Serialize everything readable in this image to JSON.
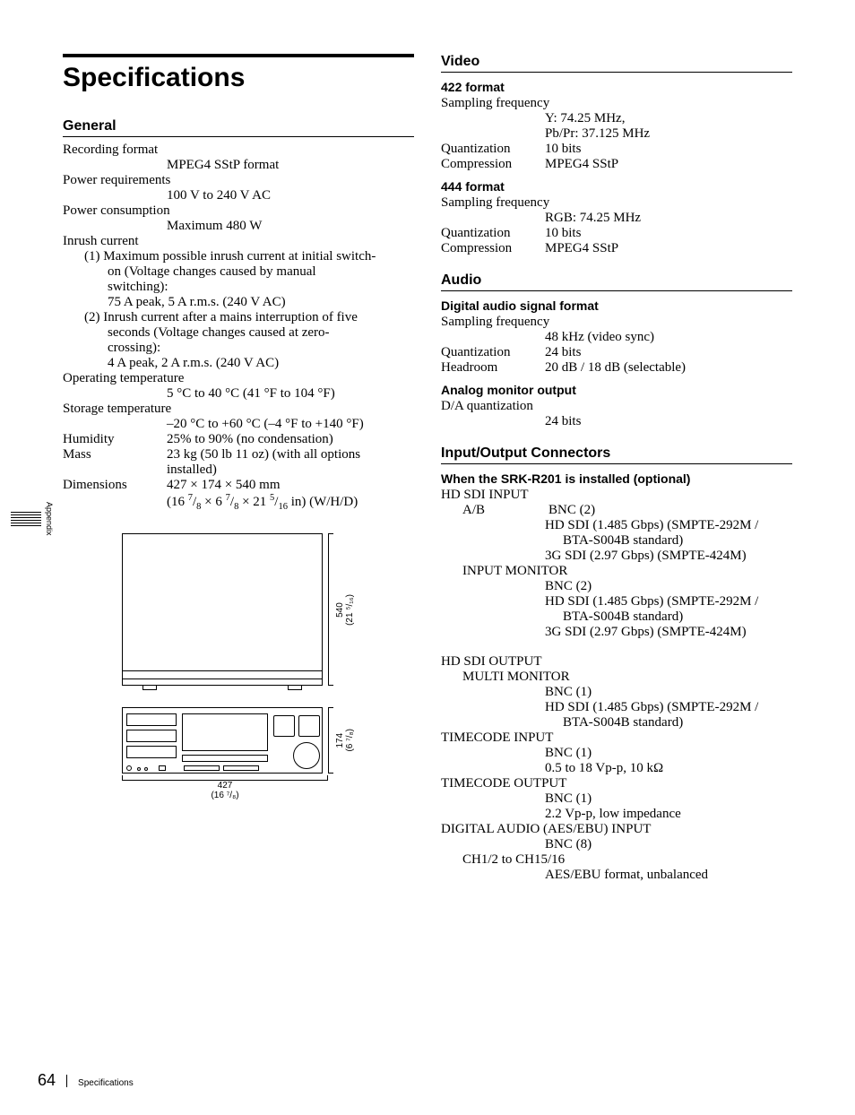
{
  "sideTab": "Appendix",
  "title": "Specifications",
  "footer": {
    "pageNum": "64",
    "label": "Specifications"
  },
  "left": {
    "general": {
      "heading": "General",
      "items": [
        {
          "label": "Recording format",
          "valueLines": [
            "MPEG4 SStP format"
          ],
          "labelFull": true
        },
        {
          "label": "Power requirements",
          "valueLines": [
            "100 V to 240 V AC"
          ],
          "labelFull": true
        },
        {
          "label": "Power consumption",
          "valueLines": [
            "Maximum 480 W"
          ],
          "labelFull": true
        },
        {
          "label": "Inrush current",
          "labelFull": true,
          "subnumbered": [
            {
              "num": "(1)",
              "first": "Maximum possible inrush current at initial switch-",
              "rest": [
                "on (Voltage changes caused by manual",
                "switching):",
                "75 A peak, 5 A r.m.s. (240 V AC)"
              ]
            },
            {
              "num": "(2)",
              "first": "Inrush current after a mains interruption of five",
              "rest": [
                "seconds (Voltage changes caused at zero-",
                "crossing):",
                "4 A peak, 2 A r.m.s. (240 V AC)"
              ]
            }
          ]
        },
        {
          "label": "Operating temperature",
          "valueLines": [
            "5 °C to 40 °C (41 °F to 104 °F)"
          ],
          "labelFull": true
        },
        {
          "label": "Storage temperature",
          "valueLines": [
            "–20 °C to +60 °C (–4 °F to +140 °F)"
          ],
          "labelFull": true
        },
        {
          "label": "Humidity",
          "value": "25% to 90% (no condensation)"
        },
        {
          "label": "Mass",
          "valueLines2": [
            "23 kg (50 lb 11 oz) (with all options",
            "installed)"
          ]
        },
        {
          "label": "Dimensions",
          "valueLines2raw": [
            "427 × 174 × 540 mm",
            "(16 <sup>7</sup>/<sub>8</sub> × 6 <sup>7</sup>/<sub>8</sub> × 21 <sup>5</sup>/<sub>16</sub> in) (W/H/D)"
          ]
        }
      ]
    },
    "figure": {
      "depth": "540",
      "depthIn": "(21 ⁵/₁₆)",
      "height": "174",
      "heightIn": "(6 ⁷/₈)",
      "width": "427",
      "widthIn": "(16 ⁷/₈)"
    }
  },
  "right": {
    "video": {
      "heading": "Video",
      "groups": [
        {
          "sub": "422 format",
          "rows": [
            {
              "label": "Sampling frequency",
              "labelFull": true,
              "valueLines": [
                "Y: 74.25 MHz,",
                "Pb/Pr: 37.125 MHz"
              ]
            },
            {
              "label": "Quantization",
              "value": "10 bits"
            },
            {
              "label": "Compression",
              "value": "MPEG4 SStP"
            }
          ]
        },
        {
          "sub": "444 format",
          "rows": [
            {
              "label": "Sampling frequency",
              "labelFull": true,
              "valueLines": [
                "RGB: 74.25 MHz"
              ]
            },
            {
              "label": "Quantization",
              "value": "10 bits"
            },
            {
              "label": "Compression",
              "value": "MPEG4 SStP"
            }
          ]
        }
      ]
    },
    "audio": {
      "heading": "Audio",
      "groups": [
        {
          "sub": "Digital audio signal format",
          "rows": [
            {
              "label": "Sampling frequency",
              "labelFull": true,
              "valueLines": [
                "48 kHz (video sync)"
              ]
            },
            {
              "label": "Quantization",
              "value": "24 bits"
            },
            {
              "label": "Headroom",
              "value": "20 dB / 18 dB (selectable)"
            }
          ]
        },
        {
          "sub": "Analog monitor output",
          "rows": [
            {
              "label": "D/A quantization",
              "labelFull": true,
              "valueLines": [
                "24 bits"
              ]
            }
          ]
        }
      ]
    },
    "io": {
      "heading": "Input/Output Connectors",
      "sub": "When the SRK-R201 is installed (optional)",
      "blocks": [
        {
          "head": "HD SDI INPUT",
          "entries": [
            {
              "name": "A/B",
              "inline": true,
              "lines": [
                "BNC (2)",
                "HD SDI (1.485 Gbps) (SMPTE-292M /",
                "    BTA-S004B standard)",
                "3G SDI (2.97 Gbps) (SMPTE-424M)"
              ]
            },
            {
              "name": "INPUT MONITOR",
              "lines": [
                "BNC (2)",
                "HD SDI (1.485 Gbps) (SMPTE-292M /",
                "    BTA-S004B standard)",
                "3G SDI (2.97 Gbps) (SMPTE-424M)"
              ]
            }
          ]
        },
        {
          "gap": true,
          "head": "HD SDI OUTPUT",
          "entries": [
            {
              "name": "MULTI MONITOR",
              "lines": [
                "BNC (1)",
                "HD SDI (1.485 Gbps) (SMPTE-292M /",
                "    BTA-S004B standard)"
              ]
            }
          ]
        },
        {
          "head": "TIMECODE INPUT",
          "entries": [
            {
              "lines": [
                "BNC (1)",
                "0.5 to 18 Vp-p, 10 kΩ"
              ]
            }
          ]
        },
        {
          "head": "TIMECODE OUTPUT",
          "entries": [
            {
              "lines": [
                "BNC (1)",
                "2.2 Vp-p, low impedance"
              ]
            }
          ]
        },
        {
          "head": "DIGITAL AUDIO (AES/EBU) INPUT",
          "entries": [
            {
              "lines": [
                "BNC (8)"
              ]
            },
            {
              "name": "CH1/2 to CH15/16",
              "lines": [
                "AES/EBU format, unbalanced"
              ]
            }
          ]
        }
      ]
    }
  }
}
